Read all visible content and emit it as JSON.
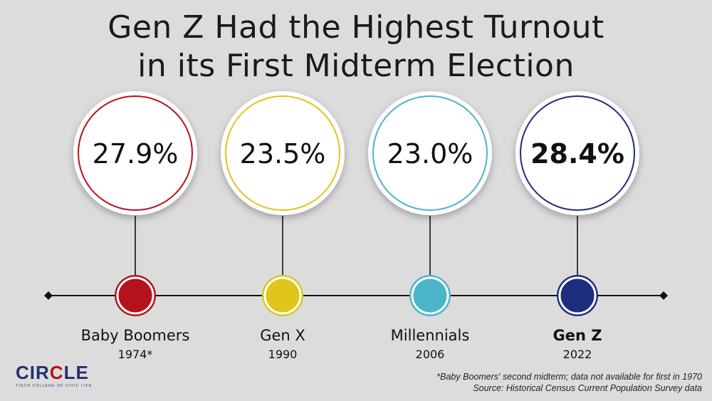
{
  "title_lines": [
    "Gen Z Had the Highest Turnout",
    "in its First Midterm Election"
  ],
  "chart_data": {
    "type": "timeline",
    "title": "Gen Z Had the Highest Turnout in its First Midterm Election",
    "unit": "%",
    "points": [
      {
        "generation": "Baby Boomers",
        "year_label": "1974*",
        "year": 1974,
        "value": 27.9,
        "value_label": "27.9%",
        "color": "#b5121b",
        "highlight": false
      },
      {
        "generation": "Gen X",
        "year_label": "1990",
        "year": 1990,
        "value": 23.5,
        "value_label": "23.5%",
        "color": "#e0c51a",
        "highlight": false
      },
      {
        "generation": "Millennials",
        "year_label": "2006",
        "year": 2006,
        "value": 23.0,
        "value_label": "23.0%",
        "color": "#4ab5c8",
        "highlight": false
      },
      {
        "generation": "Gen Z",
        "year_label": "2022",
        "year": 2022,
        "value": 28.4,
        "value_label": "28.4%",
        "color": "#1e2d7d",
        "highlight": true
      }
    ]
  },
  "footnote": {
    "line1": "*Baby Boomers' second midterm; data not available for first in 1970",
    "line2": "Source: Historical Census Current Population Survey data"
  },
  "logo": {
    "word_part1": "CIR",
    "word_part2": "C",
    "word_part3": "LE",
    "tagline": "TISCH COLLEGE OF CIVIC LIFE"
  }
}
